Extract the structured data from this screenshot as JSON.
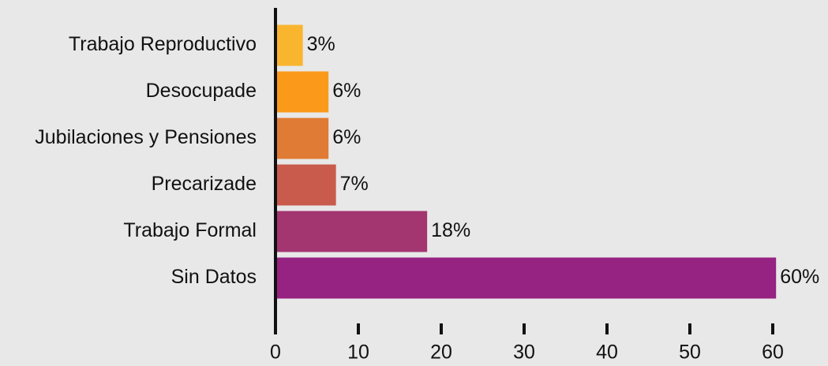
{
  "chart_data": {
    "type": "hbar",
    "categories": [
      "Trabajo Reproductivo",
      "Desocupade",
      "Jubilaciones y Pensiones",
      "Precarizade",
      "Trabajo Formal",
      "Sin Datos"
    ],
    "values": [
      3.3,
      6.4,
      6.4,
      7.3,
      18.3,
      60.4
    ],
    "value_labels": [
      "3%",
      "6%",
      "6%",
      "7%",
      "18%",
      "60%"
    ],
    "colors": [
      "#f9b52e",
      "#fb9a1a",
      "#e07b35",
      "#c95b4d",
      "#a33571",
      "#962281"
    ],
    "xlim": [
      0,
      60
    ],
    "xticks": [
      0,
      10,
      20,
      30,
      40,
      50,
      60
    ],
    "grid": false
  }
}
